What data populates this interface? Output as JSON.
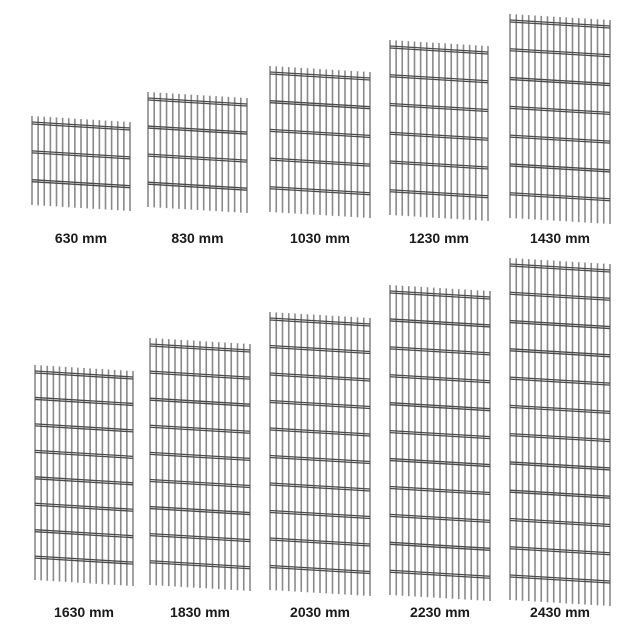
{
  "panels": [
    {
      "label": "630 mm"
    },
    {
      "label": "830 mm"
    },
    {
      "label": "1030 mm"
    },
    {
      "label": "1230 mm"
    },
    {
      "label": "1430 mm"
    },
    {
      "label": "1630 mm"
    },
    {
      "label": "1830 mm"
    },
    {
      "label": "2030 mm"
    },
    {
      "label": "2230 mm"
    },
    {
      "label": "2430 mm"
    }
  ],
  "colors": {
    "wire": "#8a8a8a",
    "bar": "#4a4a4a",
    "label": "#1a1a1a"
  }
}
